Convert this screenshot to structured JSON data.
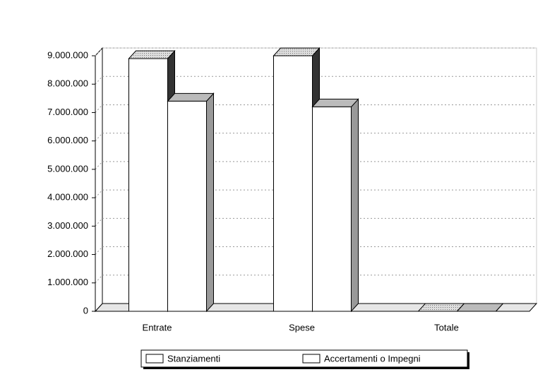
{
  "chart_data": {
    "type": "bar3d",
    "categories": [
      "Entrate",
      "Spese",
      "Totale"
    ],
    "series": [
      {
        "name": "Stanziamenti",
        "color": "#ffffff",
        "values": [
          8900000,
          9000000,
          0
        ]
      },
      {
        "name": "Accertamenti o Impegni",
        "color": "#ffffff",
        "values": [
          7400000,
          7200000,
          0
        ]
      }
    ],
    "ylim": [
      0,
      9000000
    ],
    "yticks": [
      {
        "value": 0,
        "label": "0"
      },
      {
        "value": 1000000,
        "label": "1.000.000"
      },
      {
        "value": 2000000,
        "label": "2.000.000"
      },
      {
        "value": 3000000,
        "label": "3.000.000"
      },
      {
        "value": 4000000,
        "label": "4.000.000"
      },
      {
        "value": 5000000,
        "label": "5.000.000"
      },
      {
        "value": 6000000,
        "label": "6.000.000"
      },
      {
        "value": 7000000,
        "label": "7.000.000"
      },
      {
        "value": 8000000,
        "label": "8.000.000"
      },
      {
        "value": 9000000,
        "label": "9.000.000"
      }
    ],
    "grid": true,
    "legend": "bottom"
  }
}
